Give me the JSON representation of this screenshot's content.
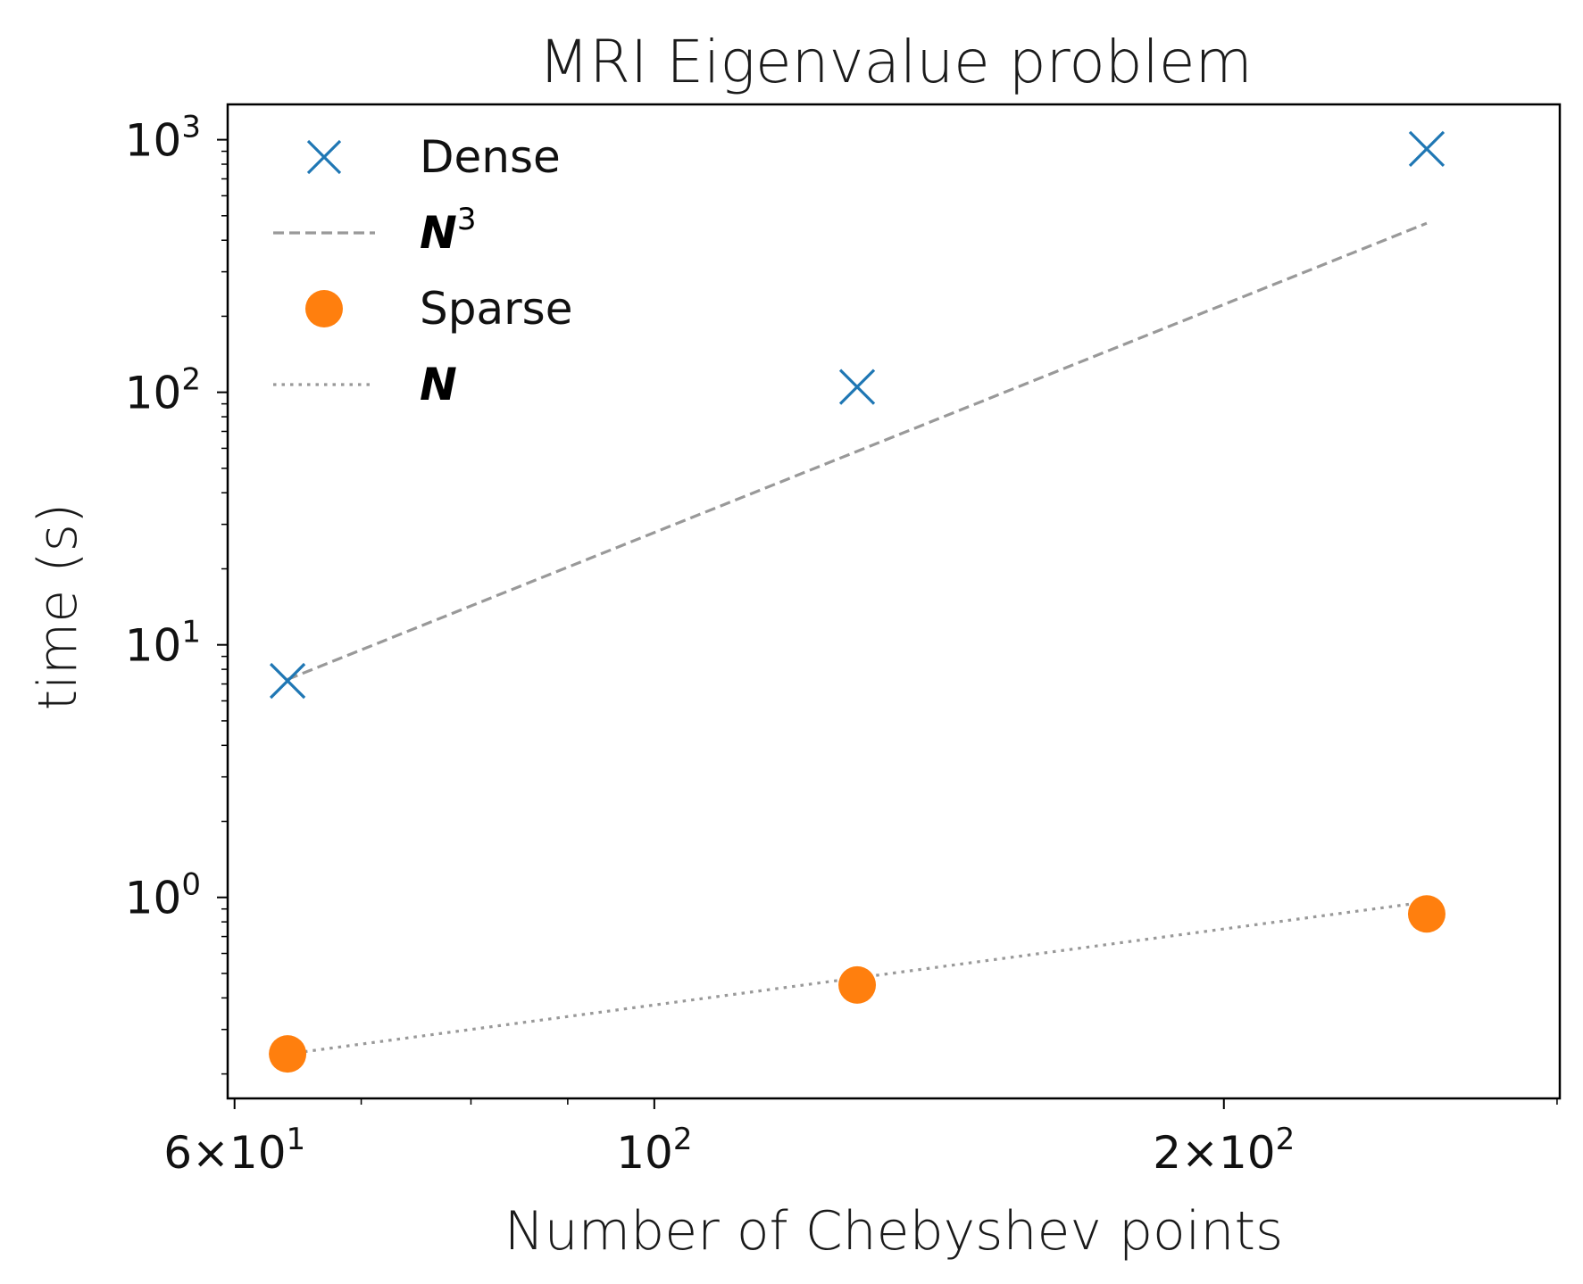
{
  "chart_data": {
    "type": "scatter",
    "title": "MRI Eigenvalue problem",
    "xlabel": "Number of Chebyshev points",
    "ylabel": "time (s)",
    "xscale": "log",
    "yscale": "log",
    "xlim": [
      59.5,
      301
    ],
    "ylim": [
      0.16,
      1380
    ],
    "grid": false,
    "legend_position": "top-left",
    "x_ticks": [
      {
        "value": 60,
        "mantissa": "6×10",
        "exp": "1"
      },
      {
        "value": 100,
        "mantissa": "10",
        "exp": "2"
      },
      {
        "value": 200,
        "mantissa": "2×10",
        "exp": "2"
      }
    ],
    "y_ticks": [
      {
        "value": 1,
        "mantissa": "10",
        "exp": "0"
      },
      {
        "value": 10,
        "mantissa": "10",
        "exp": "1"
      },
      {
        "value": 100,
        "mantissa": "10",
        "exp": "2"
      },
      {
        "value": 1000,
        "mantissa": "10",
        "exp": "3"
      }
    ],
    "x_minor_ticks": [
      70,
      80,
      90,
      300
    ],
    "series": [
      {
        "name": "Dense",
        "kind": "marker",
        "marker": "x",
        "color": "#1f77b4",
        "x": [
          64,
          128,
          256
        ],
        "y": [
          7.2,
          105,
          920
        ]
      },
      {
        "name": "N",
        "exp": "3",
        "kind": "line",
        "style": "dashed",
        "color": "#999999",
        "x": [
          64,
          256
        ],
        "y": [
          7.3,
          467
        ]
      },
      {
        "name": "Sparse",
        "kind": "marker",
        "marker": "circle",
        "color": "#ff7f0e",
        "x": [
          64,
          128,
          256
        ],
        "y": [
          0.24,
          0.45,
          0.86
        ]
      },
      {
        "name": "N",
        "exp": "",
        "kind": "line",
        "style": "dotted",
        "color": "#999999",
        "x": [
          64,
          256
        ],
        "y": [
          0.24,
          0.96
        ]
      }
    ]
  }
}
